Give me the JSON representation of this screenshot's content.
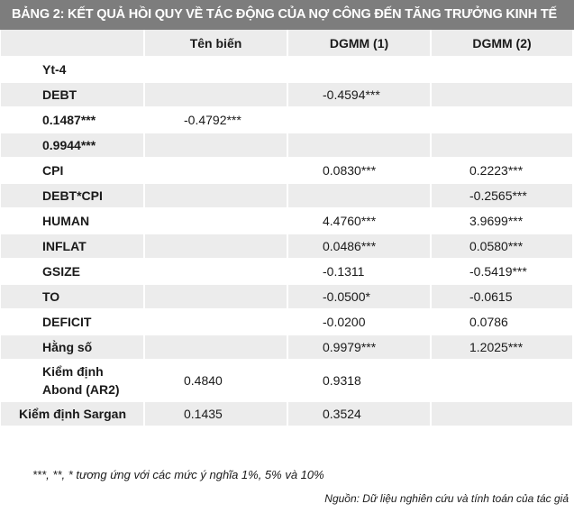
{
  "table_title": "BẢNG 2: KẾT QUẢ HỒI QUY VỀ TÁC ĐỘNG CỦA NỢ CÔNG ĐẾN TĂNG TRƯỞNG KINH TẾ",
  "columns": [
    "",
    "Tên biến",
    "DGMM (1)",
    "DGMM (2)"
  ],
  "rows": [
    {
      "label": "Yt-4",
      "c1": "",
      "c2": "",
      "c3": ""
    },
    {
      "label": "DEBT",
      "c1": "",
      "c2": "-0.4594***",
      "c3": ""
    },
    {
      "label": "0.1487***",
      "c1": "-0.4792***",
      "c2": "",
      "c3": ""
    },
    {
      "label": "0.9944***",
      "c1": "",
      "c2": "",
      "c3": ""
    },
    {
      "label": "CPI",
      "c1": "",
      "c2": "0.0830***",
      "c3": "0.2223***"
    },
    {
      "label": "DEBT*CPI",
      "c1": "",
      "c2": "",
      "c3": "-0.2565***"
    },
    {
      "label": "HUMAN",
      "c1": "",
      "c2": "4.4760***",
      "c3": "3.9699***"
    },
    {
      "label": "INFLAT",
      "c1": "",
      "c2": "0.0486***",
      "c3": "0.0580***"
    },
    {
      "label": "GSIZE",
      "c1": "",
      "c2": "-0.1311",
      "c3": "-0.5419***"
    },
    {
      "label": "TO",
      "c1": "",
      "c2": "-0.0500*",
      "c3": "-0.0615"
    },
    {
      "label": "DEFICIT",
      "c1": "",
      "c2": "-0.0200",
      "c3": "0.0786"
    },
    {
      "label": "Hằng số",
      "c1": "",
      "c2": "0.9979***",
      "c3": "1.2025***"
    },
    {
      "label": "Kiểm định Abond (AR2)",
      "c1": "0.4840",
      "c2": "0.9318",
      "c3": ""
    },
    {
      "label": "Kiểm định Sargan",
      "c1": "0.1435",
      "c2": "0.3524",
      "c3": ""
    }
  ],
  "footnote": "***, **, * tương ứng với các mức ý nghĩa 1%, 5% và 10%",
  "source": "Nguồn: Dữ liệu nghiên cứu và tính toán của tác giả"
}
